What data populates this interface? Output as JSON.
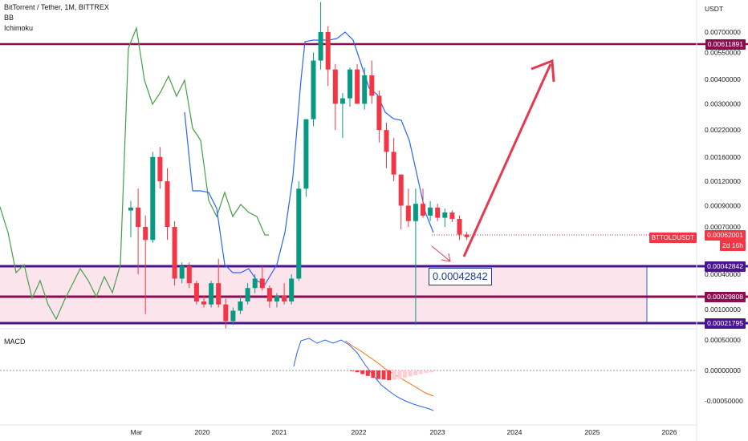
{
  "header": {
    "title": "BitTorrent / Tether, 1M, BITTREX",
    "indicators": [
      "BB",
      "Ichimoku"
    ]
  },
  "price_axis": {
    "unit": "USDT",
    "ticks": [
      "0.00700000",
      "0.00550000",
      "0.00400000",
      "0.00300000",
      "0.00220000",
      "0.00160000",
      "0.00120000",
      "0.00090000",
      "0.00070000",
      "0.00040000",
      "0.00031000",
      "0.00023000"
    ]
  },
  "time_axis": {
    "ticks": [
      "Mar",
      "2020",
      "2021",
      "2022",
      "2023",
      "2024",
      "2025",
      "2026"
    ]
  },
  "levels": {
    "top": "0.00611891",
    "mid_upper": "0.00042842",
    "mid_lower": "0.00029808",
    "bottom": "0.00021795"
  },
  "current": {
    "symbol": "BTTOLDUSDT",
    "price": "0.00062001",
    "countdown": "2d 16h"
  },
  "callout": {
    "value": "0.00042842"
  },
  "macd": {
    "label": "MACD",
    "ticks": [
      "0.00100000",
      "0.00050000",
      "0.00000000",
      "-0.00050000"
    ]
  },
  "colors": {
    "up": "#089981",
    "down": "#f23645",
    "level_line": "#880e4f",
    "zone_fill": "#fce4ec",
    "bb_line": "#2962ff",
    "ichimoku": "#43a047",
    "arrow": "#e53950",
    "macd_line": "#2962ff",
    "signal_line": "#ff6d00"
  },
  "chart_data": {
    "type": "candlestick",
    "bars": [
      {
        "t": "2019-02",
        "o": 0.00085,
        "h": 0.00095,
        "l": 0.00062,
        "c": 0.00088
      },
      {
        "t": "2019-03",
        "o": 0.00088,
        "h": 0.0011,
        "l": 0.0004,
        "c": 0.0007
      },
      {
        "t": "2019-04",
        "o": 0.0007,
        "h": 0.0008,
        "l": 0.00025,
        "c": 0.0006
      },
      {
        "t": "2019-05",
        "o": 0.0006,
        "h": 0.0017,
        "l": 0.00058,
        "c": 0.0016
      },
      {
        "t": "2019-06",
        "o": 0.0016,
        "h": 0.0018,
        "l": 0.0011,
        "c": 0.0012
      },
      {
        "t": "2019-07",
        "o": 0.0012,
        "h": 0.0014,
        "l": 0.0006,
        "c": 0.0007
      },
      {
        "t": "2019-08",
        "o": 0.0007,
        "h": 0.00075,
        "l": 0.00035,
        "c": 0.00038
      },
      {
        "t": "2019-09",
        "o": 0.00038,
        "h": 0.00046,
        "l": 0.00036,
        "c": 0.00044
      },
      {
        "t": "2019-10",
        "o": 0.00044,
        "h": 0.00046,
        "l": 0.00034,
        "c": 0.00036
      },
      {
        "t": "2019-11",
        "o": 0.00036,
        "h": 0.00037,
        "l": 0.00028,
        "c": 0.00029
      },
      {
        "t": "2019-12",
        "o": 0.00029,
        "h": 0.00031,
        "l": 0.00027,
        "c": 0.00028
      },
      {
        "t": "2020-01",
        "o": 0.00028,
        "h": 0.00037,
        "l": 0.00027,
        "c": 0.00036
      },
      {
        "t": "2020-02",
        "o": 0.00036,
        "h": 0.00048,
        "l": 0.00027,
        "c": 0.00028
      },
      {
        "t": "2020-03",
        "o": 0.00028,
        "h": 0.0003,
        "l": 0.00021,
        "c": 0.00023
      },
      {
        "t": "2020-04",
        "o": 0.00023,
        "h": 0.00027,
        "l": 0.00022,
        "c": 0.00026
      },
      {
        "t": "2020-05",
        "o": 0.00026,
        "h": 0.00031,
        "l": 0.00025,
        "c": 0.00029
      },
      {
        "t": "2020-06",
        "o": 0.00029,
        "h": 0.00036,
        "l": 0.00028,
        "c": 0.00034
      },
      {
        "t": "2020-07",
        "o": 0.00034,
        "h": 0.0004,
        "l": 0.00032,
        "c": 0.00038
      },
      {
        "t": "2020-08",
        "o": 0.00038,
        "h": 0.00044,
        "l": 0.00033,
        "c": 0.00034
      },
      {
        "t": "2020-09",
        "o": 0.00034,
        "h": 0.00035,
        "l": 0.00027,
        "c": 0.00029
      },
      {
        "t": "2020-10",
        "o": 0.00029,
        "h": 0.00032,
        "l": 0.00027,
        "c": 0.00031
      },
      {
        "t": "2020-11",
        "o": 0.00031,
        "h": 0.00036,
        "l": 0.00028,
        "c": 0.00029
      },
      {
        "t": "2020-12",
        "o": 0.00029,
        "h": 0.0004,
        "l": 0.00028,
        "c": 0.00038
      },
      {
        "t": "2021-01",
        "o": 0.00038,
        "h": 0.0012,
        "l": 0.00037,
        "c": 0.0011
      },
      {
        "t": "2021-02",
        "o": 0.0011,
        "h": 0.0025,
        "l": 0.001,
        "c": 0.0025
      },
      {
        "t": "2021-03",
        "o": 0.0025,
        "h": 0.0055,
        "l": 0.0023,
        "c": 0.005
      },
      {
        "t": "2021-04",
        "o": 0.005,
        "h": 0.01,
        "l": 0.0045,
        "c": 0.007
      },
      {
        "t": "2021-05",
        "o": 0.007,
        "h": 0.0075,
        "l": 0.0037,
        "c": 0.0045
      },
      {
        "t": "2021-06",
        "o": 0.0045,
        "h": 0.0048,
        "l": 0.0022,
        "c": 0.003
      },
      {
        "t": "2021-07",
        "o": 0.003,
        "h": 0.0034,
        "l": 0.002,
        "c": 0.0032
      },
      {
        "t": "2021-08",
        "o": 0.0032,
        "h": 0.0046,
        "l": 0.0029,
        "c": 0.0045
      },
      {
        "t": "2021-09",
        "o": 0.0045,
        "h": 0.0048,
        "l": 0.003,
        "c": 0.003
      },
      {
        "t": "2021-10",
        "o": 0.003,
        "h": 0.0046,
        "l": 0.0028,
        "c": 0.0042
      },
      {
        "t": "2021-11",
        "o": 0.0042,
        "h": 0.005,
        "l": 0.003,
        "c": 0.0033
      },
      {
        "t": "2021-12",
        "o": 0.0033,
        "h": 0.0035,
        "l": 0.0019,
        "c": 0.0022
      },
      {
        "t": "2022-01",
        "o": 0.0022,
        "h": 0.0024,
        "l": 0.0014,
        "c": 0.0017
      },
      {
        "t": "2022-02",
        "o": 0.0017,
        "h": 0.002,
        "l": 0.0012,
        "c": 0.0013
      },
      {
        "t": "2022-03",
        "o": 0.0013,
        "h": 0.0013,
        "l": 0.00068,
        "c": 0.0009
      },
      {
        "t": "2022-04",
        "o": 0.0009,
        "h": 0.0011,
        "l": 0.0007,
        "c": 0.00075
      },
      {
        "t": "2022-05",
        "o": 0.00075,
        "h": 0.0011,
        "l": 0.00022,
        "c": 0.00092
      },
      {
        "t": "2022-06",
        "o": 0.00092,
        "h": 0.0011,
        "l": 0.00078,
        "c": 0.0008
      },
      {
        "t": "2022-07",
        "o": 0.0008,
        "h": 0.00095,
        "l": 0.00075,
        "c": 0.00088
      },
      {
        "t": "2022-08",
        "o": 0.00088,
        "h": 0.00092,
        "l": 0.00075,
        "c": 0.00078
      },
      {
        "t": "2022-09",
        "o": 0.00078,
        "h": 0.00087,
        "l": 0.0007,
        "c": 0.00083
      },
      {
        "t": "2022-10",
        "o": 0.00083,
        "h": 0.00085,
        "l": 0.00074,
        "c": 0.00077
      },
      {
        "t": "2022-11",
        "o": 0.00077,
        "h": 0.0008,
        "l": 0.0006,
        "c": 0.00064
      },
      {
        "t": "2022-12",
        "o": 0.00064,
        "h": 0.00066,
        "l": 0.0006,
        "c": 0.00062
      }
    ]
  }
}
